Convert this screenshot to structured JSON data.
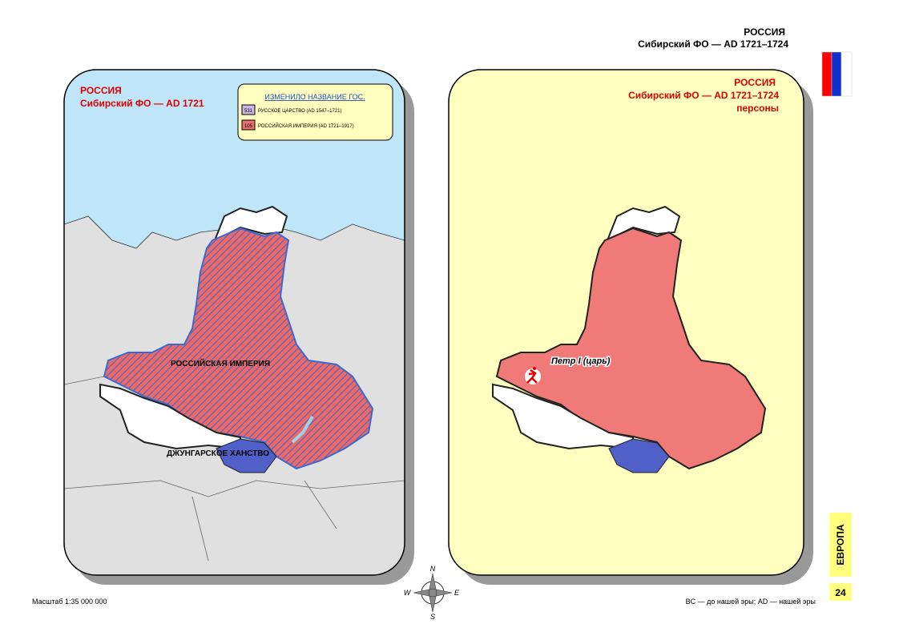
{
  "header": {
    "title": "РОССИЯ",
    "subtitle": "Сибирский ФО — AD 1721–1724"
  },
  "left_map": {
    "title": "РОССИЯ",
    "subtitle": "Сибирский ФО — AD 1721",
    "legend": {
      "title": "ИЗМЕНИЛО НАЗВАНИЕ ГОС.",
      "items": [
        {
          "code": "531",
          "label": "РУССКОЕ ЦАРСТВО (AD 1547–1721)"
        },
        {
          "code": "105",
          "label": "РОССИЙСКАЯ ИМПЕРИЯ (AD 1721–1917)"
        }
      ]
    },
    "labels": [
      "РОССИЙСКАЯ ИМПЕРИЯ",
      "ДЖУНГАРСКОЕ ХАНСТВО"
    ]
  },
  "right_map": {
    "title": "РОССИЯ",
    "subtitle": "Сибирский ФО — AD 1721–1724",
    "subtitle2": "персоны",
    "person": "Петр I (царь)"
  },
  "footer": {
    "scale": "Масштаб 1:35 000 000",
    "note": "BC — до нашей эры; AD — нашей эры",
    "section": "ЕВРОПА",
    "page": "24",
    "compass": [
      "N",
      "W",
      "E",
      "S"
    ]
  }
}
